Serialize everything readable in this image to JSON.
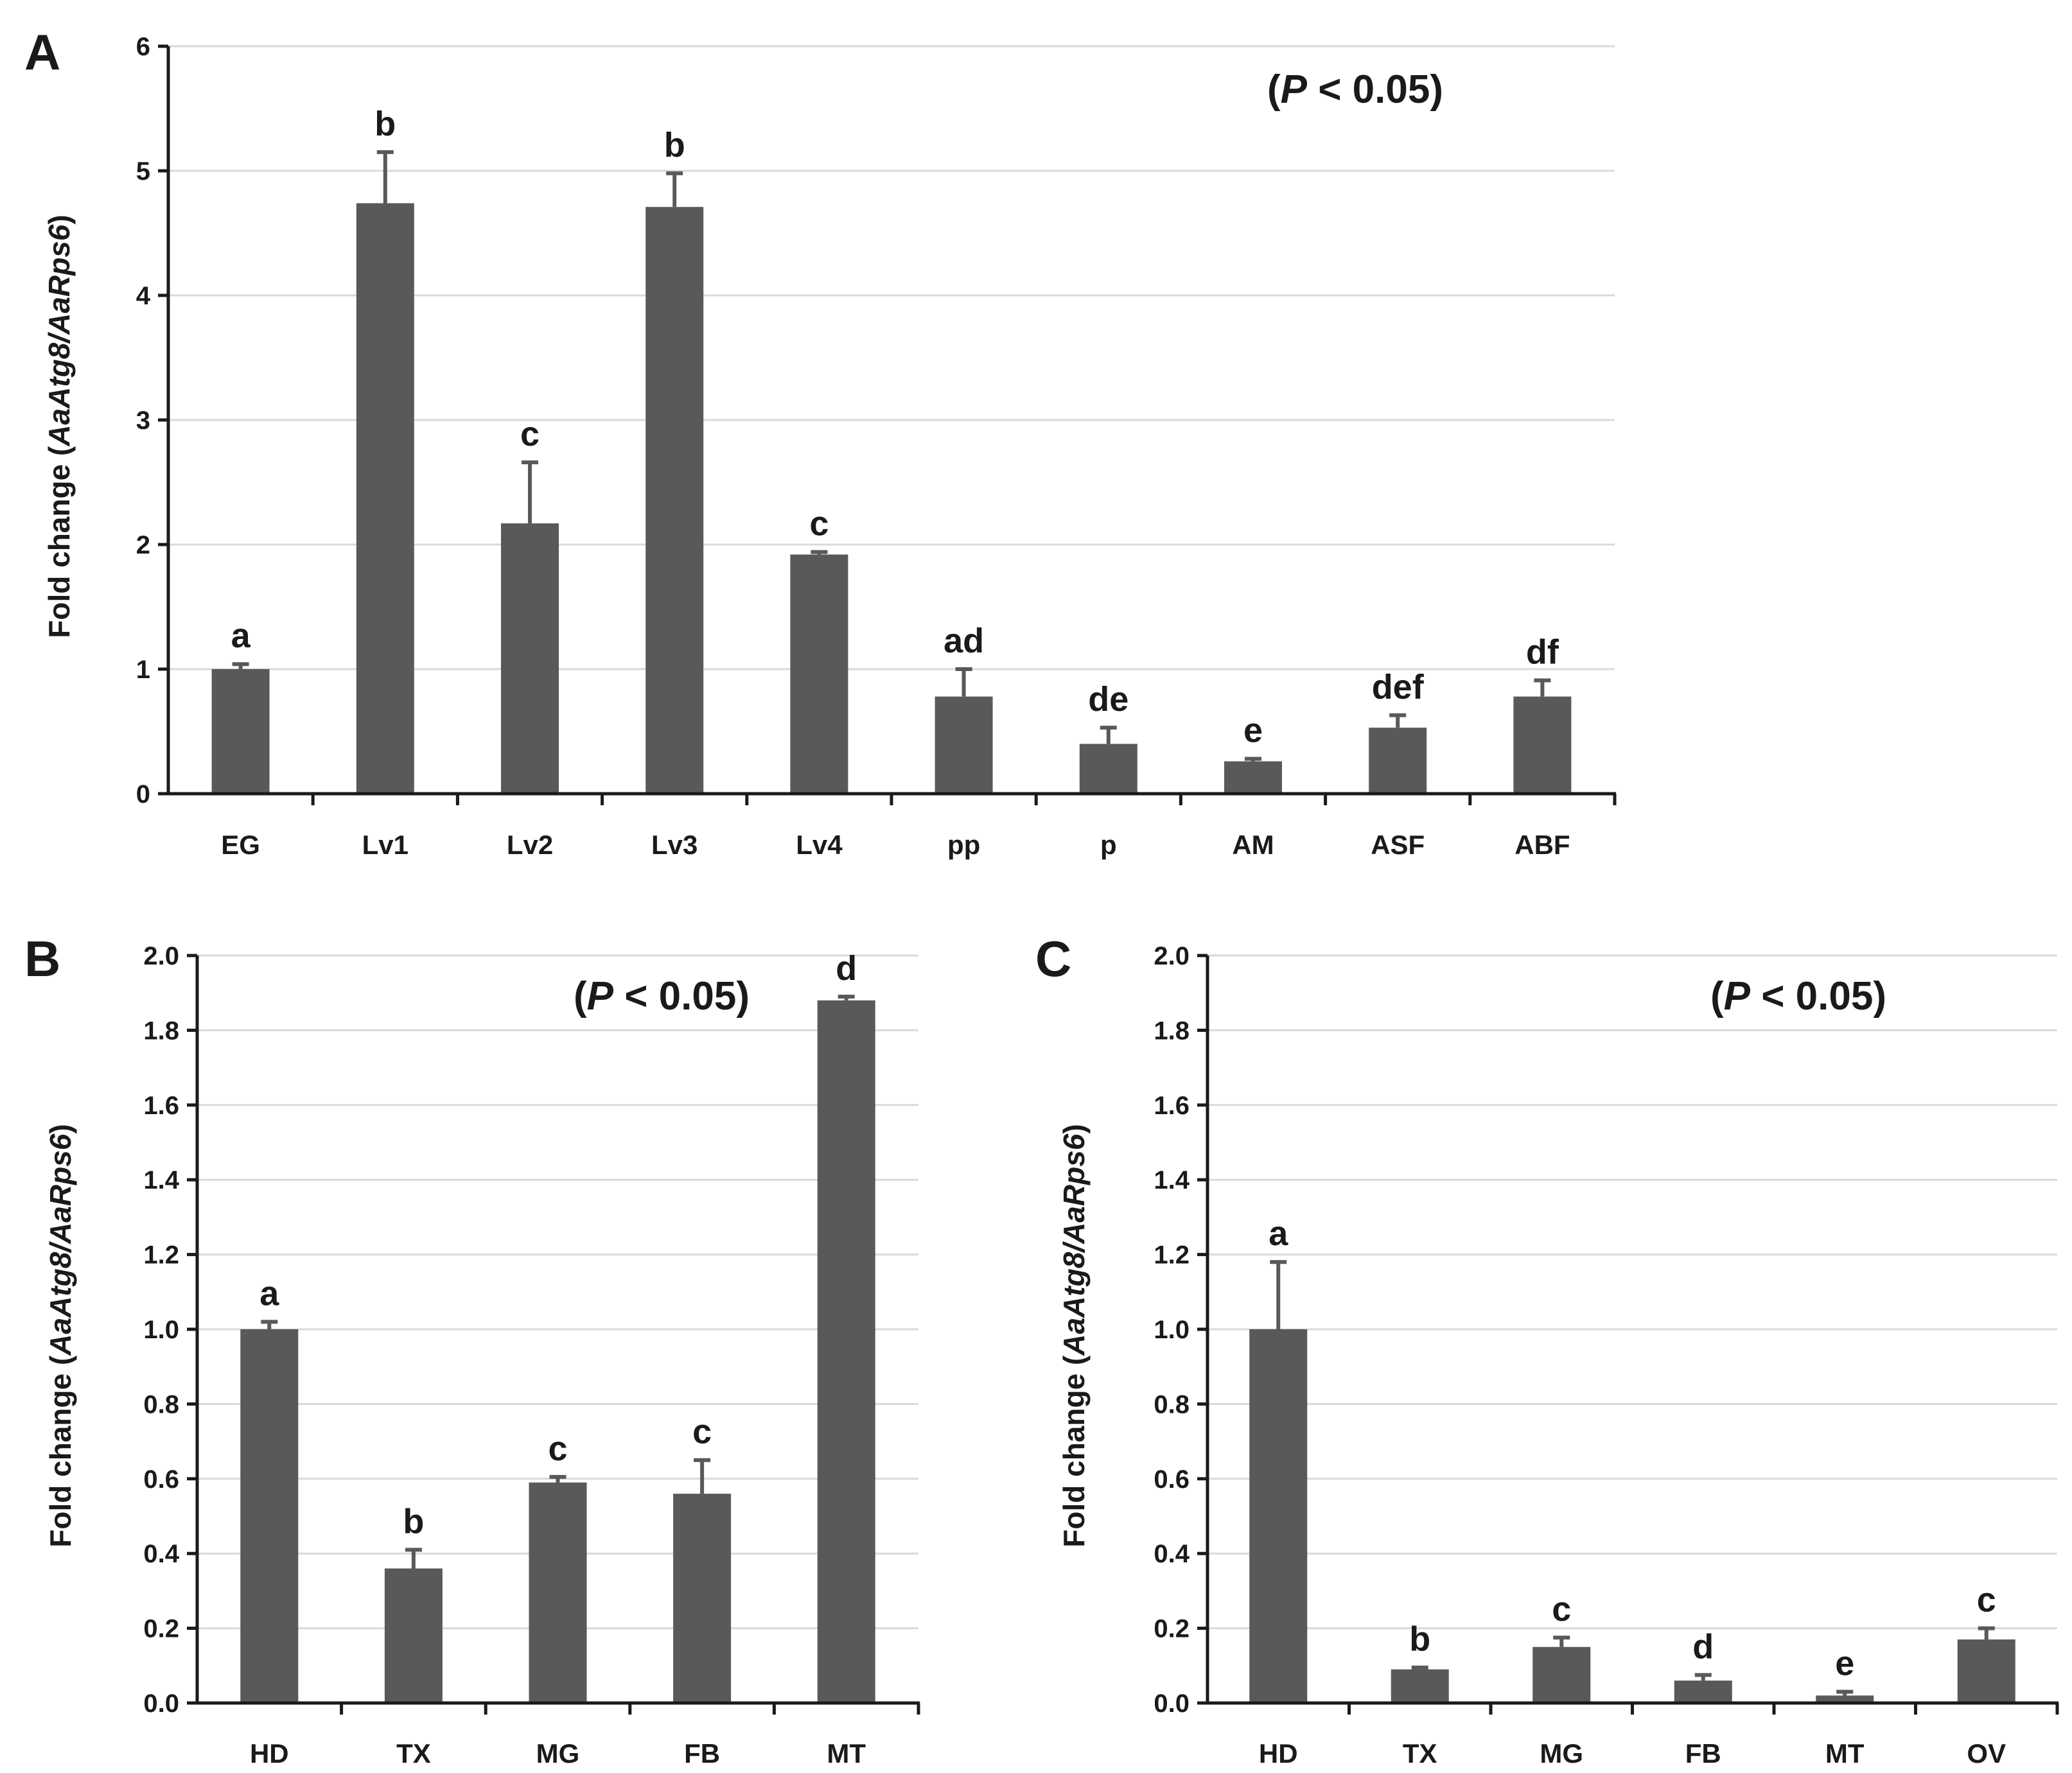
{
  "chart_data": [
    {
      "panel": "A",
      "type": "bar",
      "annotation": {
        "pre": "(",
        "italic": "P",
        "post": " < 0.05)"
      },
      "ylabel": {
        "prefix": "Fold change (",
        "italic": "AaAtg8/AaRps6",
        "suffix": ")"
      },
      "ylim": [
        0,
        6
      ],
      "yticks": [
        "0",
        "1",
        "2",
        "3",
        "4",
        "5",
        "6"
      ],
      "grid": true,
      "categories": [
        "EG",
        "Lv1",
        "Lv2",
        "Lv3",
        "Lv4",
        "pp",
        "p",
        "AM",
        "ASF",
        "ABF"
      ],
      "values": [
        1.0,
        4.74,
        2.17,
        4.71,
        1.92,
        0.78,
        0.4,
        0.26,
        0.53,
        0.78
      ],
      "errors": [
        0.04,
        0.41,
        0.49,
        0.27,
        0.02,
        0.22,
        0.13,
        0.02,
        0.1,
        0.13
      ],
      "labels": [
        "a",
        "b",
        "c",
        "b",
        "c",
        "ad",
        "de",
        "e",
        "def",
        "df"
      ],
      "bar_color": "#595959"
    },
    {
      "panel": "B",
      "type": "bar",
      "annotation": {
        "pre": "(",
        "italic": "P",
        "post": " < 0.05)"
      },
      "ylabel": {
        "prefix": "Fold change (",
        "italic": "AaAtg8/AaRps6",
        "suffix": ")"
      },
      "ylim": [
        0,
        2.0
      ],
      "yticks": [
        "0.0",
        "0.2",
        "0.4",
        "0.6",
        "0.8",
        "1.0",
        "1.2",
        "1.4",
        "1.6",
        "1.8",
        "2.0"
      ],
      "grid": true,
      "categories": [
        "HD",
        "TX",
        "MG",
        "FB",
        "MT"
      ],
      "values": [
        1.0,
        0.36,
        0.59,
        0.56,
        1.88
      ],
      "errors": [
        0.02,
        0.05,
        0.015,
        0.09,
        0.01
      ],
      "labels": [
        "a",
        "b",
        "c",
        "c",
        "d"
      ],
      "bar_color": "#595959"
    },
    {
      "panel": "C",
      "type": "bar",
      "annotation": {
        "pre": "(",
        "italic": "P",
        "post": " < 0.05)"
      },
      "ylabel": {
        "prefix": "Fold change (",
        "italic": "AaAtg8/AaRps6",
        "suffix": ")"
      },
      "ylim": [
        0,
        2.0
      ],
      "yticks": [
        "0.0",
        "0.2",
        "0.4",
        "0.6",
        "0.8",
        "1.0",
        "1.2",
        "1.4",
        "1.6",
        "1.8",
        "2.0"
      ],
      "grid": true,
      "categories": [
        "HD",
        "TX",
        "MG",
        "FB",
        "MT",
        "OV"
      ],
      "values": [
        1.0,
        0.09,
        0.15,
        0.06,
        0.02,
        0.17
      ],
      "errors": [
        0.18,
        0.005,
        0.025,
        0.015,
        0.01,
        0.03
      ],
      "labels": [
        "a",
        "b",
        "c",
        "d",
        "e",
        "c"
      ],
      "bar_color": "#595959"
    }
  ]
}
